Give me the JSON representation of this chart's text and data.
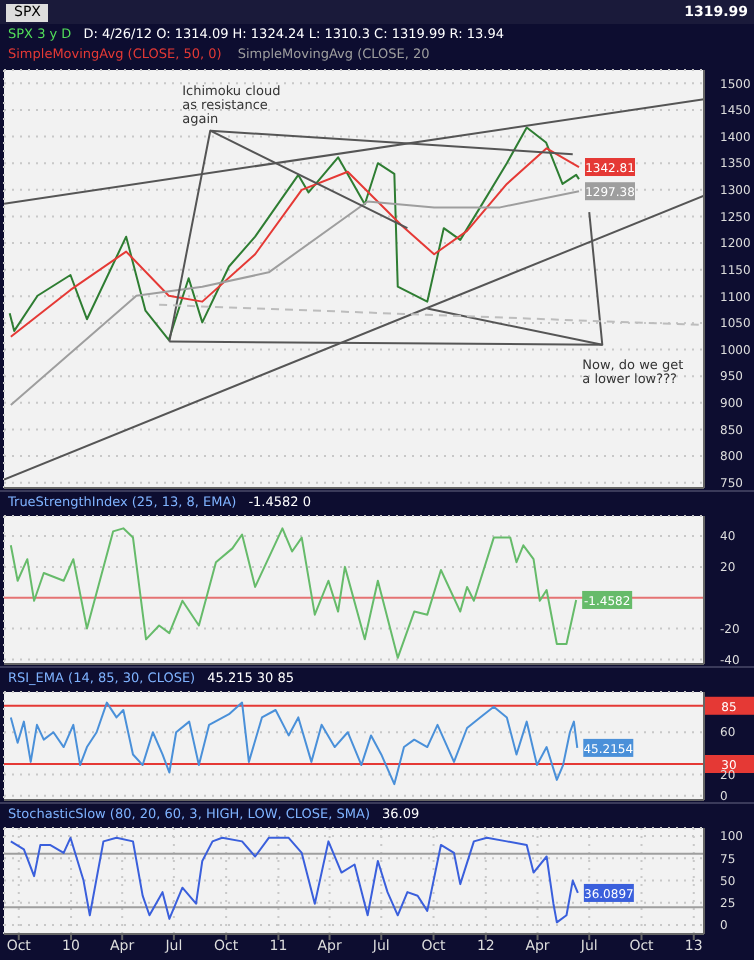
{
  "chart_data": [
    {
      "type": "line",
      "title": "SPX",
      "subtitle": "D: 4/26/12  O: 1314.09  H: 1324.24  L: 1310.3  C: 1319.99  R: 13.94",
      "legend": "top",
      "grid": true,
      "tick_labels": "y",
      "xlim": [
        "2009-09-05",
        "2013-01-19"
      ],
      "ylim": [
        740,
        1525
      ],
      "xticks": [
        {
          "value": "2009-10-01",
          "label": null
        },
        {
          "value": "2010-01-01",
          "label": null
        },
        {
          "value": "2010-04-01",
          "label": null
        },
        {
          "value": "2010-07-01",
          "label": null
        },
        {
          "value": "2010-10-01",
          "label": null
        },
        {
          "value": "2011-01-01",
          "label": null
        },
        {
          "value": "2011-04-01",
          "label": null
        },
        {
          "value": "2011-07-01",
          "label": null
        },
        {
          "value": "2011-10-01",
          "label": null
        },
        {
          "value": "2012-01-01",
          "label": null
        },
        {
          "value": "2012-04-01",
          "label": null
        },
        {
          "value": "2012-07-01",
          "label": null
        },
        {
          "value": "2012-10-01",
          "label": null
        },
        {
          "value": "2013-01-01",
          "label": null
        }
      ],
      "yticks": [
        750,
        800,
        850,
        900,
        950,
        1000,
        1050,
        1100,
        1150,
        1200,
        1250,
        1300,
        1350,
        1400,
        1450,
        1500
      ],
      "annotations": [
        "1319.99",
        {
          "text": "Ichimoku cloud as resistance again",
          "x": "2010-09-03",
          "y": 1411
        },
        {
          "text": "Now, do we get a lower low???",
          "x": "2012-07-24",
          "y": 1009
        }
      ],
      "series": [
        {
          "type": "line",
          "name": "SPX 3 y D",
          "color": "#2e7d32",
          "x": [
            "2009-09-15",
            "2009-09-23",
            "2009-11-03",
            "2009-12-31",
            "2010-01-29",
            "2010-04-08",
            "2010-05-12",
            "2010-06-22",
            "2010-07-27",
            "2010-08-20",
            "2010-10-06",
            "2010-11-21",
            "2010-12-27",
            "2011-02-05",
            "2011-02-23",
            "2011-04-16",
            "2011-06-02",
            "2011-06-25",
            "2011-07-24",
            "2011-07-30",
            "2011-09-20",
            "2011-10-19",
            "2011-11-17",
            "2011-12-22",
            "2012-02-07",
            "2012-03-13",
            "2012-04-16",
            "2012-05-15",
            "2012-06-08",
            "2012-06-13"
          ],
          "values": [
            1068,
            1035,
            1101,
            1140,
            1057,
            1212,
            1073,
            1018,
            1134,
            1051,
            1156,
            1212,
            1267,
            1328,
            1295,
            1361,
            1273,
            1350,
            1330,
            1118,
            1090,
            1228,
            1206,
            1267,
            1350,
            1417,
            1389,
            1311,
            1328,
            1319.99
          ]
        },
        {
          "type": "line",
          "name": "SimpleMovingAvg (CLOSE, 50, 0)",
          "color": "#e53935",
          "x": [
            "2009-09-17",
            "2009-12-31",
            "2010-04-08",
            "2010-06-22",
            "2010-08-20",
            "2010-11-21",
            "2011-02-11",
            "2011-05-03",
            "2011-08-05",
            "2011-10-02",
            "2011-11-29",
            "2012-02-07",
            "2012-04-17",
            "2012-06-13"
          ],
          "values": [
            1024,
            1112,
            1184,
            1101,
            1090,
            1179,
            1300,
            1334,
            1234,
            1179,
            1223,
            1311,
            1378,
            1342.81
          ],
          "value_labels": [
            null,
            null,
            null,
            null,
            null,
            null,
            null,
            null,
            null,
            null,
            null,
            null,
            null,
            "1342.81"
          ]
        },
        {
          "type": "line",
          "name": "SimpleMovingAvg (CLOSE, 20",
          "color": "#9e9e9e",
          "x": [
            "2009-09-17",
            "2010-04-26",
            "2010-08-20",
            "2010-12-15",
            "2011-06-07",
            "2011-10-02",
            "2012-01-26",
            "2012-06-13"
          ],
          "values": [
            896,
            1101,
            1118,
            1145,
            1278,
            1267,
            1267,
            1297.38
          ],
          "value_labels": [
            null,
            null,
            null,
            null,
            null,
            null,
            null,
            "1297.38"
          ]
        },
        {
          "type": "line",
          "color": "#555555",
          "x": [
            "2009-09-05",
            "2013-01-19"
          ],
          "values": [
            1274,
            1470
          ]
        },
        {
          "type": "line",
          "color": "#555555",
          "x": [
            "2009-09-05",
            "2013-01-19"
          ],
          "values": [
            756,
            1289
          ]
        },
        {
          "type": "line",
          "color": "#555555",
          "x": [
            "2010-06-23",
            "2012-07-24"
          ],
          "values": [
            1015,
            1009
          ]
        },
        {
          "type": "line",
          "color": "#555555",
          "x": [
            "2010-06-23",
            "2010-09-03",
            "2011-08-16"
          ],
          "values": [
            1015,
            1411,
            1228
          ]
        },
        {
          "type": "line",
          "color": "#555555",
          "x": [
            "2010-09-03",
            "2012-06-02"
          ],
          "values": [
            1411,
            1367
          ]
        },
        {
          "type": "line",
          "color": "#555555",
          "x": [
            "2011-09-20",
            "2012-07-24",
            "2012-07-01"
          ],
          "values": [
            1077,
            1009,
            1258
          ]
        },
        {
          "type": "line",
          "color": "#bdbdbd",
          "line_style": "dashed",
          "x": [
            "2010-06-05",
            "2013-01-19"
          ],
          "values": [
            1084,
            1046
          ]
        }
      ]
    },
    {
      "type": "line",
      "title": "TrueStrengthIndex (25, 13, 8, EMA)",
      "subtitle": "-1.4582  0",
      "grid": true,
      "tick_labels": "y",
      "xlim": [
        "2009-09-05",
        "2013-01-19"
      ],
      "ylim": [
        -43,
        53
      ],
      "yticks": [
        -40,
        -20,
        20,
        40
      ],
      "ref_lines": [
        {
          "axis": "y",
          "value": 0,
          "color": "#e57373"
        }
      ],
      "series": [
        {
          "type": "line",
          "color": "#66bb6a",
          "x": [
            "2009-09-17",
            "2009-09-29",
            "2009-10-16",
            "2009-10-28",
            "2009-11-14",
            "2009-12-19",
            "2010-01-05",
            "2010-01-29",
            "2010-03-16",
            "2010-04-03",
            "2010-04-20",
            "2010-05-13",
            "2010-06-05",
            "2010-06-23",
            "2010-07-16",
            "2010-08-14",
            "2010-09-13",
            "2010-10-12",
            "2010-10-29",
            "2010-11-21",
            "2011-01-08",
            "2011-01-25",
            "2011-02-11",
            "2011-03-06",
            "2011-03-30",
            "2011-04-16",
            "2011-04-28",
            "2011-06-02",
            "2011-06-25",
            "2011-07-30",
            "2011-08-28",
            "2011-09-20",
            "2011-10-14",
            "2011-11-17",
            "2011-11-29",
            "2011-12-11",
            "2012-01-15",
            "2012-02-13",
            "2012-02-24",
            "2012-03-07",
            "2012-03-25",
            "2012-04-05",
            "2012-04-17",
            "2012-05-05",
            "2012-05-22",
            "2012-06-08"
          ],
          "values": [
            34,
            11,
            25,
            -2,
            16,
            11,
            25,
            -20,
            43,
            45,
            39,
            -27,
            -18,
            -23,
            -2,
            -18,
            23,
            32,
            41,
            7,
            45,
            30,
            39,
            -11,
            11,
            -9,
            20,
            -27,
            11,
            -39,
            -9,
            -11,
            18,
            -9,
            7,
            -2,
            39,
            39,
            23,
            34,
            25,
            -2,
            5,
            -30,
            -30,
            -1.4582
          ],
          "value_labels": [
            null,
            null,
            null,
            null,
            null,
            null,
            null,
            null,
            null,
            null,
            null,
            null,
            null,
            null,
            null,
            null,
            null,
            null,
            null,
            null,
            null,
            null,
            null,
            null,
            null,
            null,
            null,
            null,
            null,
            null,
            null,
            null,
            null,
            null,
            null,
            null,
            null,
            null,
            null,
            null,
            null,
            null,
            null,
            null,
            null,
            "-1.4582"
          ]
        }
      ]
    },
    {
      "type": "line",
      "title": "RSI_EMA (14, 85, 30, CLOSE)",
      "subtitle": "45.215  30  85",
      "grid": true,
      "tick_labels": "y",
      "xlim": [
        "2009-09-05",
        "2013-01-19"
      ],
      "ylim": [
        -4,
        98
      ],
      "yticks": [
        0,
        20,
        60
      ],
      "ref_lines": [
        {
          "axis": "y",
          "value": 85,
          "label": "85",
          "color": "#e53935"
        },
        {
          "axis": "y",
          "value": 30,
          "label": "30",
          "color": "#e53935"
        }
      ],
      "series": [
        {
          "type": "line",
          "color": "#4a90d9",
          "x": [
            "2009-09-17",
            "2009-09-29",
            "2009-10-10",
            "2009-10-22",
            "2009-11-02",
            "2009-11-14",
            "2009-12-01",
            "2009-12-19",
            "2010-01-05",
            "2010-01-17",
            "2010-01-29",
            "2010-02-15",
            "2010-03-05",
            "2010-03-22",
            "2010-04-03",
            "2010-04-20",
            "2010-05-07",
            "2010-05-25",
            "2010-06-11",
            "2010-06-23",
            "2010-07-05",
            "2010-07-28",
            "2010-08-14",
            "2010-09-01",
            "2010-10-06",
            "2010-10-29",
            "2010-11-10",
            "2010-12-03",
            "2010-12-27",
            "2011-01-19",
            "2011-02-05",
            "2011-02-28",
            "2011-03-18",
            "2011-04-10",
            "2011-05-03",
            "2011-05-27",
            "2011-06-13",
            "2011-07-01",
            "2011-07-24",
            "2011-08-10",
            "2011-08-28",
            "2011-09-20",
            "2011-10-08",
            "2011-11-06",
            "2011-11-29",
            "2011-12-22",
            "2012-01-15",
            "2012-02-07",
            "2012-02-24",
            "2012-03-13",
            "2012-03-31",
            "2012-04-17",
            "2012-05-05",
            "2012-05-16",
            "2012-05-28",
            "2012-06-04",
            "2012-06-10"
          ],
          "values": [
            74,
            50,
            70,
            32,
            67,
            53,
            60,
            46,
            67,
            29,
            46,
            60,
            88,
            74,
            81,
            39,
            29,
            60,
            39,
            22,
            60,
            70,
            29,
            67,
            77,
            88,
            32,
            74,
            81,
            57,
            74,
            32,
            67,
            46,
            60,
            29,
            57,
            39,
            11,
            46,
            53,
            46,
            67,
            32,
            64,
            74,
            84,
            74,
            39,
            70,
            29,
            46,
            15,
            29,
            60,
            70,
            45.2154
          ],
          "value_labels": [
            null,
            null,
            null,
            null,
            null,
            null,
            null,
            null,
            null,
            null,
            null,
            null,
            null,
            null,
            null,
            null,
            null,
            null,
            null,
            null,
            null,
            null,
            null,
            null,
            null,
            null,
            null,
            null,
            null,
            null,
            null,
            null,
            null,
            null,
            null,
            null,
            null,
            null,
            null,
            null,
            null,
            null,
            null,
            null,
            null,
            null,
            null,
            null,
            null,
            null,
            null,
            null,
            null,
            null,
            null,
            null,
            "45.2154"
          ]
        }
      ]
    },
    {
      "type": "line",
      "title": "StochasticSlow (80, 20, 60, 3, HIGH, LOW, CLOSE, SMA)",
      "subtitle": "36.09",
      "grid": true,
      "xlim": [
        "2009-09-05",
        "2013-01-19"
      ],
      "ylim": [
        -10,
        109
      ],
      "yticks": [
        0,
        25,
        50,
        75,
        100
      ],
      "xticks": [
        {
          "value": "2009-10-01",
          "label": "Oct"
        },
        {
          "value": "2010-01-01",
          "label": "10"
        },
        {
          "value": "2010-04-01",
          "label": "Apr"
        },
        {
          "value": "2010-07-01",
          "label": "Jul"
        },
        {
          "value": "2010-10-01",
          "label": "Oct"
        },
        {
          "value": "2011-01-01",
          "label": "11"
        },
        {
          "value": "2011-04-01",
          "label": "Apr"
        },
        {
          "value": "2011-07-01",
          "label": "Jul"
        },
        {
          "value": "2011-10-01",
          "label": "Oct"
        },
        {
          "value": "2012-01-01",
          "label": "12"
        },
        {
          "value": "2012-04-01",
          "label": "Apr"
        },
        {
          "value": "2012-07-01",
          "label": "Jul"
        },
        {
          "value": "2012-10-01",
          "label": "Oct"
        },
        {
          "value": "2013-01-01",
          "label": "13"
        }
      ],
      "ref_lines": [
        {
          "axis": "y",
          "value": 80,
          "color": "#9e9e9e"
        },
        {
          "axis": "y",
          "value": 20,
          "color": "#9e9e9e"
        }
      ],
      "series": [
        {
          "type": "line",
          "color": "#3a5fdc",
          "x": [
            "2009-09-17",
            "2009-10-10",
            "2009-10-28",
            "2009-11-08",
            "2009-11-25",
            "2009-12-19",
            "2009-12-31",
            "2010-01-23",
            "2010-02-03",
            "2010-02-27",
            "2010-03-22",
            "2010-04-20",
            "2010-05-07",
            "2010-05-19",
            "2010-06-11",
            "2010-06-23",
            "2010-07-16",
            "2010-08-09",
            "2010-08-20",
            "2010-09-07",
            "2010-09-24",
            "2010-10-29",
            "2010-11-21",
            "2010-12-15",
            "2011-01-19",
            "2011-02-11",
            "2011-03-06",
            "2011-03-30",
            "2011-04-22",
            "2011-05-15",
            "2011-06-07",
            "2011-06-25",
            "2011-07-12",
            "2011-07-30",
            "2011-08-16",
            "2011-09-03",
            "2011-09-20",
            "2011-10-14",
            "2011-11-06",
            "2011-11-17",
            "2011-12-11",
            "2012-01-03",
            "2012-02-07",
            "2012-03-13",
            "2012-03-25",
            "2012-04-17",
            "2012-04-29",
            "2012-05-05",
            "2012-05-22",
            "2012-06-02",
            "2012-06-11"
          ],
          "values": [
            94,
            85,
            55,
            90,
            90,
            81,
            98,
            50,
            11,
            94,
            98,
            94,
            33,
            11,
            37,
            7,
            42,
            24,
            72,
            94,
            98,
            94,
            77,
            98,
            98,
            81,
            24,
            94,
            59,
            68,
            11,
            72,
            37,
            11,
            37,
            33,
            16,
            90,
            81,
            46,
            94,
            98,
            94,
            90,
            59,
            77,
            24,
            3,
            11,
            50,
            36.0897
          ],
          "value_labels": [
            null,
            null,
            null,
            null,
            null,
            null,
            null,
            null,
            null,
            null,
            null,
            null,
            null,
            null,
            null,
            null,
            null,
            null,
            null,
            null,
            null,
            null,
            null,
            null,
            null,
            null,
            null,
            null,
            null,
            null,
            null,
            null,
            null,
            null,
            null,
            null,
            null,
            null,
            null,
            null,
            null,
            null,
            null,
            null,
            null,
            null,
            null,
            null,
            null,
            null,
            "36.0897"
          ]
        }
      ]
    }
  ]
}
